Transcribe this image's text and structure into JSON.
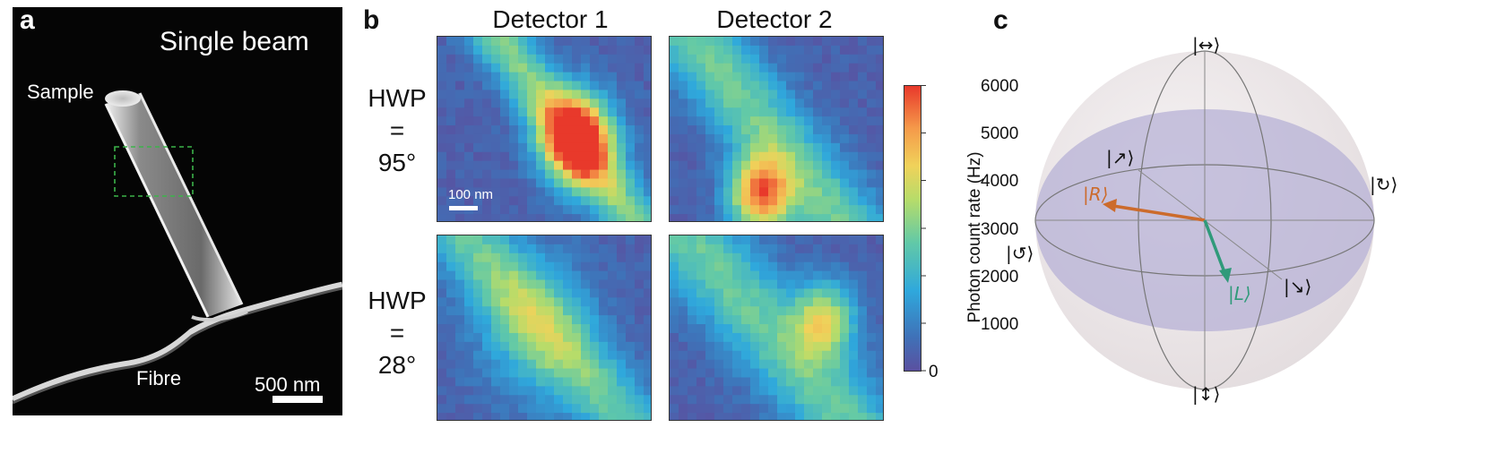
{
  "panel_a": {
    "label": "a",
    "title": "Single beam",
    "sample_label": "Sample",
    "fibre_label": "Fibre",
    "scalebar_label": "500 nm"
  },
  "panel_b": {
    "label": "b",
    "col_headers": [
      "Detector 1",
      "Detector 2"
    ],
    "row1": {
      "line1": "HWP",
      "line2": "=",
      "line3": "95°"
    },
    "row2": {
      "line1": "HWP",
      "line2": "=",
      "line3": "28°"
    },
    "inner_scalebar": "100 nm",
    "colorbar": {
      "label": "Photon count rate (Hz)",
      "ticks": [
        "6000",
        "5000",
        "4000",
        "3000",
        "2000",
        "1000",
        "0"
      ],
      "min": 0,
      "max": 6000
    }
  },
  "panel_c": {
    "label": "c",
    "states": {
      "top": "|↔⟩",
      "bottom": "|↕⟩",
      "left": "|↺⟩",
      "right": "|↻⟩",
      "diag_upper": "|↗⟩",
      "diag_lower": "|↘⟩",
      "R": "|R⟩",
      "L": "|L⟩"
    },
    "colors": {
      "R": "#cc6b2c",
      "L": "#2f9a7a"
    }
  }
}
